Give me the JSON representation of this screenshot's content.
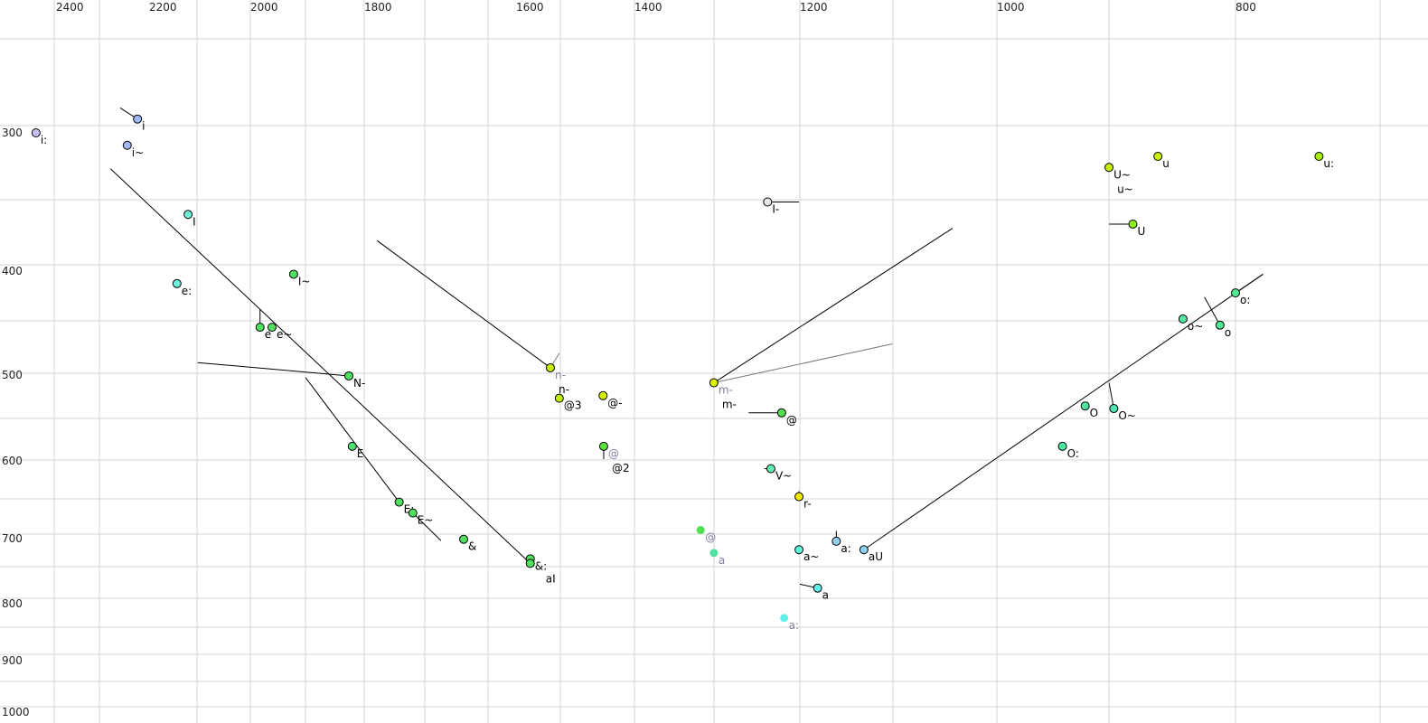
{
  "chart_data": {
    "type": "scatter",
    "title": "",
    "xlabel": "",
    "ylabel": "",
    "x_axis": {
      "reversed": true,
      "position": "top",
      "ticks": [
        2400,
        2200,
        2000,
        1800,
        1600,
        1400,
        1200,
        1000,
        800
      ]
    },
    "y_axis": {
      "reversed": true,
      "position": "left",
      "ticks": [
        300,
        400,
        500,
        600,
        700,
        800,
        900,
        1000
      ]
    },
    "grid": true,
    "points": [
      {
        "x": 2443,
        "y": 300,
        "fill": "#c8c0f4",
        "labels": [
          {
            "text": "i:",
            "color": "#000000"
          }
        ]
      },
      {
        "x": 2225,
        "y": 290,
        "fill": "#a0b8f8",
        "labels": [
          {
            "text": "i",
            "color": "#000000"
          }
        ],
        "to": [
          [
            2262,
            282
          ]
        ]
      },
      {
        "x": 2247,
        "y": 309,
        "fill": "#a0b8f8",
        "labels": [
          {
            "text": "i~",
            "color": "#000000"
          }
        ]
      },
      {
        "x": 2123,
        "y": 359,
        "fill": "#70f0d8",
        "labels": [
          {
            "text": "I",
            "color": "#000000"
          }
        ]
      },
      {
        "x": 2145,
        "y": 412,
        "fill": "#70f0d8",
        "labels": [
          {
            "text": "e:",
            "color": "#000000"
          }
        ]
      },
      {
        "x": 1924,
        "y": 403,
        "fill": "#50e060",
        "labels": [
          {
            "text": "I~",
            "color": "#000000"
          }
        ]
      },
      {
        "x": 1983,
        "y": 454,
        "fill": "#50e060",
        "labels": [
          {
            "text": "e",
            "color": "#000000"
          }
        ],
        "to": [
          [
            1983,
            437
          ]
        ]
      },
      {
        "x": 1962,
        "y": 454,
        "fill": "#50e060",
        "labels": [
          {
            "text": "e~",
            "color": "#000000"
          }
        ]
      },
      {
        "x": 1827,
        "y": 501,
        "fill": "#50e060",
        "labels": [
          {
            "text": "N-",
            "color": "#000000"
          }
        ],
        "to": [
          [
            2104,
            488
          ]
        ]
      },
      {
        "x": 1821,
        "y": 583,
        "fill": "#50e070",
        "labels": [
          {
            "text": "E",
            "color": "#000000"
          }
        ]
      },
      {
        "x": 1754,
        "y": 653,
        "fill": "#50e060",
        "labels": [
          {
            "text": "E:",
            "color": "#000000"
          }
        ],
        "to": [
          [
            1903,
            503
          ]
        ]
      },
      {
        "x": 1736,
        "y": 667,
        "fill": "#50e060",
        "labels": [
          {
            "text": "E~",
            "color": "#000000"
          }
        ],
        "to": [
          [
            1699,
            703
          ]
        ]
      },
      {
        "x": 1669,
        "y": 701,
        "fill": "#50e060",
        "labels": [
          {
            "text": "&",
            "color": "#000000"
          }
        ]
      },
      {
        "x": 1576,
        "y": 731,
        "fill": "#50e060",
        "labels": [
          {
            "text": "&:",
            "color": "#000000"
          }
        ]
      },
      {
        "x": 1576,
        "y": 738,
        "fill": "#50e060",
        "labels": [
          {
            "text": "aI",
            "color": "#000000"
          }
        ],
        "to": [
          [
            2283,
            326
          ]
        ]
      },
      {
        "x": 1542,
        "y": 493,
        "fill": "#c8f000",
        "labels": [
          {
            "text": "n-",
            "color": "#8080a0"
          },
          {
            "text": "n-",
            "color": "#000000"
          }
        ],
        "to": [
          [
            1783,
            378
          ]
        ],
        "to_gray": [
          [
            1527,
            479
          ]
        ]
      },
      {
        "x": 1527,
        "y": 527,
        "fill": "#c0f000",
        "labels": [
          {
            "text": "@3",
            "color": "#000000"
          }
        ]
      },
      {
        "x": 1453,
        "y": 524,
        "fill": "#d8f000",
        "labels": [
          {
            "text": "@-",
            "color": "#000000"
          }
        ]
      },
      {
        "x": 1452,
        "y": 583,
        "fill": "#60e040",
        "labels": [
          {
            "text": "@",
            "color": "#8080a0"
          },
          {
            "text": "@2",
            "color": "#000000"
          }
        ],
        "to": [
          [
            1452,
            598
          ]
        ]
      },
      {
        "x": 1304,
        "y": 509,
        "fill": "#e0f000",
        "labels": [
          {
            "text": "m-",
            "color": "#8080a0"
          },
          {
            "text": "m-",
            "color": "#000000"
          }
        ],
        "to": [
          [
            1045,
            369
          ]
        ],
        "to_gray": [
          [
            1106,
            470
          ]
        ]
      },
      {
        "x": 1222,
        "y": 544,
        "fill": "#50e050",
        "labels": [
          {
            "text": "@",
            "color": "#000000"
          }
        ],
        "to": [
          [
            1262,
            544
          ]
        ]
      },
      {
        "x": 1235,
        "y": 610,
        "fill": "#60f0b0",
        "labels": [
          {
            "text": "V~",
            "color": "#000000"
          }
        ],
        "to": [
          [
            1243,
            610
          ]
        ]
      },
      {
        "x": 1201,
        "y": 646,
        "fill": "#f0e800",
        "labels": [
          {
            "text": "r-",
            "color": "#000000"
          }
        ],
        "to": [
          [
            1201,
            639
          ]
        ]
      },
      {
        "x": 1320,
        "y": 689,
        "fill": "#50e050",
        "outline": false,
        "labels": [
          {
            "text": "@",
            "color": "#8080a0"
          }
        ]
      },
      {
        "x": 1304,
        "y": 722,
        "fill": "#50e0a0",
        "outline": false,
        "labels": [
          {
            "text": "a",
            "color": "#8080a0"
          }
        ]
      },
      {
        "x": 1201,
        "y": 717,
        "fill": "#60f0d8",
        "labels": [
          {
            "text": "a~",
            "color": "#000000"
          }
        ]
      },
      {
        "x": 1163,
        "y": 704,
        "fill": "#90d0f0",
        "labels": [
          {
            "text": "a:",
            "color": "#000000"
          }
        ],
        "to": [
          [
            1163,
            690
          ]
        ]
      },
      {
        "x": 1135,
        "y": 717,
        "fill": "#90d0f0",
        "labels": [
          {
            "text": "aU",
            "color": "#000000"
          }
        ],
        "to": [
          [
            777,
            403
          ]
        ]
      },
      {
        "x": 1182,
        "y": 776,
        "fill": "#60f0e8",
        "labels": [
          {
            "text": "a",
            "color": "#000000"
          }
        ],
        "to": [
          [
            1200,
            770
          ]
        ]
      },
      {
        "x": 1219,
        "y": 825,
        "fill": "#60f0e8",
        "outline": false,
        "labels": [
          {
            "text": "a:",
            "color": "#8080a0"
          }
        ]
      },
      {
        "x": 1239,
        "y": 350,
        "fill": "#e8e8e8",
        "labels": [
          {
            "text": "I-",
            "color": "#000000"
          }
        ],
        "to": [
          [
            1201,
            350
          ]
        ]
      },
      {
        "x": 906,
        "y": 325,
        "fill": "#c8f000",
        "labels": [
          {
            "text": "U~",
            "color": "#000000"
          },
          {
            "text": "u~",
            "color": "#000000"
          }
        ]
      },
      {
        "x": 865,
        "y": 317,
        "fill": "#c8f000",
        "labels": [
          {
            "text": "u",
            "color": "#000000"
          }
        ]
      },
      {
        "x": 730,
        "y": 317,
        "fill": "#a8f000",
        "labels": [
          {
            "text": "u:",
            "color": "#000000"
          }
        ]
      },
      {
        "x": 886,
        "y": 366,
        "fill": "#90f020",
        "labels": [
          {
            "text": "U",
            "color": "#000000"
          }
        ],
        "to": [
          [
            906,
            366
          ]
        ]
      },
      {
        "x": 800,
        "y": 421,
        "fill": "#50e890",
        "labels": [
          {
            "text": "o:",
            "color": "#000000"
          }
        ],
        "to": [
          [
            777,
            403
          ]
        ]
      },
      {
        "x": 844,
        "y": 446,
        "fill": "#50e8a0",
        "labels": [
          {
            "text": "o~",
            "color": "#000000"
          }
        ]
      },
      {
        "x": 813,
        "y": 452,
        "fill": "#50e890",
        "labels": [
          {
            "text": "o",
            "color": "#000000"
          }
        ],
        "to": [
          [
            826,
            425
          ]
        ]
      },
      {
        "x": 926,
        "y": 536,
        "fill": "#50e8a0",
        "labels": [
          {
            "text": "O",
            "color": "#000000"
          }
        ]
      },
      {
        "x": 902,
        "y": 539,
        "fill": "#50e8b0",
        "labels": [
          {
            "text": "O~",
            "color": "#000000"
          }
        ],
        "to": [
          [
            906,
            509
          ]
        ]
      },
      {
        "x": 945,
        "y": 583,
        "fill": "#50e8a0",
        "labels": [
          {
            "text": "O:",
            "color": "#000000"
          }
        ]
      }
    ]
  }
}
